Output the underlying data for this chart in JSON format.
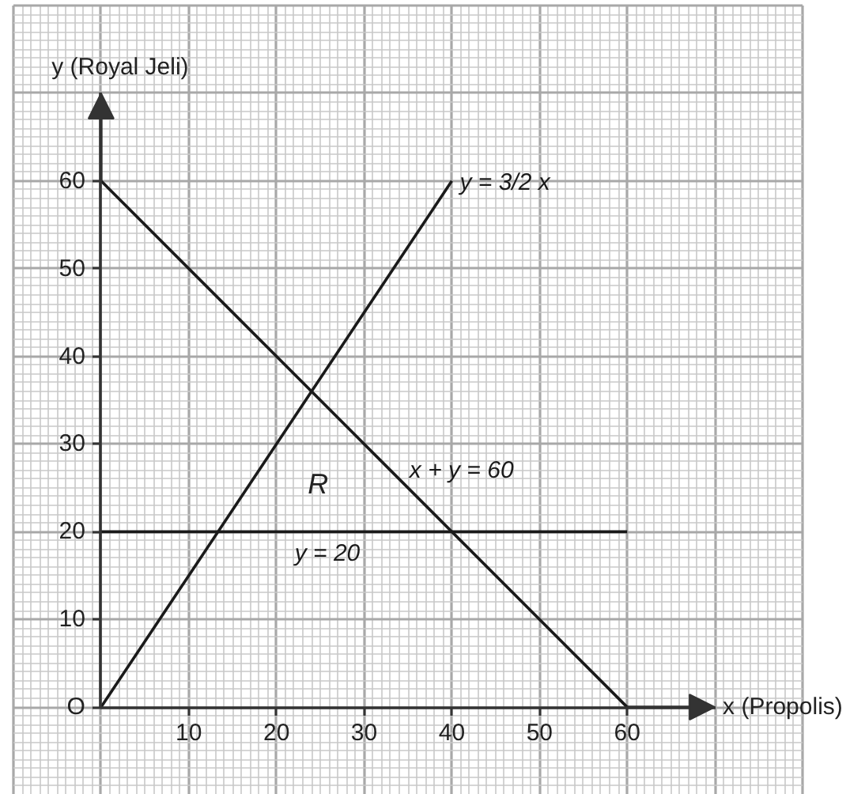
{
  "chart_data": {
    "type": "line",
    "xlabel": "x (Propolis)",
    "ylabel": "y (Royal Jeli)",
    "xlim": [
      -10,
      80
    ],
    "ylim": [
      -10,
      80
    ],
    "xticks": [
      10,
      20,
      30,
      40,
      50,
      60
    ],
    "yticks": [
      {
        "value": 0,
        "label": "O"
      },
      10,
      20,
      30,
      40,
      50,
      60
    ],
    "grid": true,
    "line_style": "solid",
    "series": [
      {
        "name": "y = 3/2 x",
        "color": "#1a1a1a",
        "x": [
          0,
          40
        ],
        "values": [
          0,
          60
        ]
      },
      {
        "name": "x + y = 60",
        "color": "#1a1a1a",
        "x": [
          0,
          60
        ],
        "values": [
          60,
          0
        ]
      },
      {
        "name": "y = 20",
        "color": "#1a1a1a",
        "x": [
          0,
          60
        ],
        "values": [
          20,
          20
        ]
      }
    ],
    "annotations": [
      "R"
    ]
  }
}
